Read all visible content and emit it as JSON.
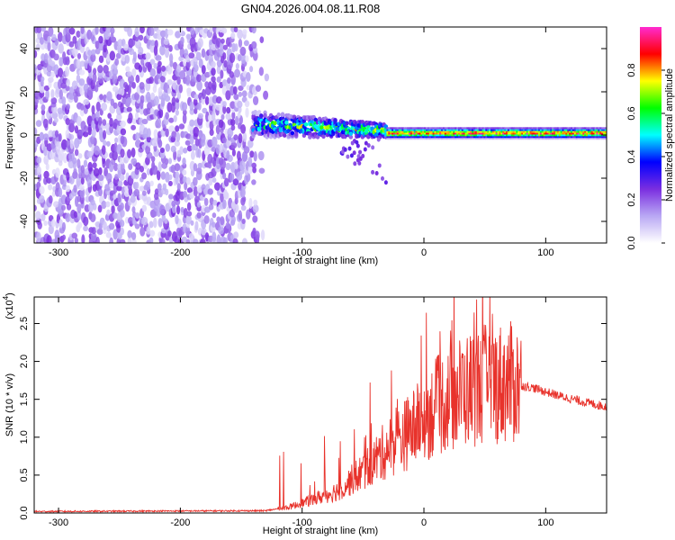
{
  "title": "GN04.2026.004.08.11.R08",
  "chart_data": [
    {
      "type": "heatmap",
      "xlabel": "Height of straight line (km)",
      "ylabel": "Frequency (Hz)",
      "xlim": [
        -320,
        150
      ],
      "ylim": [
        -50,
        50
      ],
      "xticks": [
        -300,
        -200,
        -100,
        0,
        100
      ],
      "yticks": [
        -40,
        -20,
        0,
        20,
        40
      ],
      "colorbar": {
        "label": "Normalized spectral amplitude",
        "range": [
          0,
          1
        ],
        "ticks": [
          0.0,
          0.2,
          0.4,
          0.6,
          0.8
        ],
        "colors": [
          "#ffffff",
          "#b9a8f4",
          "#7a2ee0",
          "#0000ff",
          "#00ffff",
          "#00ff00",
          "#ffff00",
          "#ff0000",
          "#ff2bd0"
        ]
      },
      "regions": [
        {
          "x_range": [
            -320,
            -140
          ],
          "freq_range": [
            -50,
            50
          ],
          "amplitude": 0.15
        },
        {
          "x_range": [
            -140,
            -30
          ],
          "freq_center": 5,
          "freq_width": 12,
          "amplitude": 0.45
        },
        {
          "x_range": [
            -30,
            150
          ],
          "freq_center": 1,
          "freq_width": 5,
          "amplitude": 0.85
        }
      ]
    },
    {
      "type": "line",
      "xlabel": "Height of straight line (km)",
      "ylabel": "SNR (10 * v/v)",
      "yscale_note": "(x10",
      "yscale_exp": "4",
      "xlim": [
        -320,
        150
      ],
      "ylim": [
        0,
        2.85
      ],
      "xticks": [
        -300,
        -200,
        -100,
        0,
        100
      ],
      "yticks": [
        0.0,
        0.5,
        1.0,
        1.5,
        2.0,
        2.5
      ],
      "series": [
        {
          "color": "#e8322b",
          "envelope": [
            {
              "x": -320,
              "y": 0.02
            },
            {
              "x": -130,
              "y": 0.03
            },
            {
              "x": -110,
              "y": 0.08
            },
            {
              "x": -90,
              "y": 0.18
            },
            {
              "x": -70,
              "y": 0.3
            },
            {
              "x": -50,
              "y": 0.55
            },
            {
              "x": -30,
              "y": 0.85
            },
            {
              "x": -10,
              "y": 1.1
            },
            {
              "x": 10,
              "y": 1.4
            },
            {
              "x": 30,
              "y": 1.6
            },
            {
              "x": 50,
              "y": 1.7
            },
            {
              "x": 70,
              "y": 1.72
            },
            {
              "x": 90,
              "y": 1.65
            },
            {
              "x": 110,
              "y": 1.55
            },
            {
              "x": 130,
              "y": 1.47
            },
            {
              "x": 150,
              "y": 1.4
            }
          ]
        }
      ]
    }
  ]
}
